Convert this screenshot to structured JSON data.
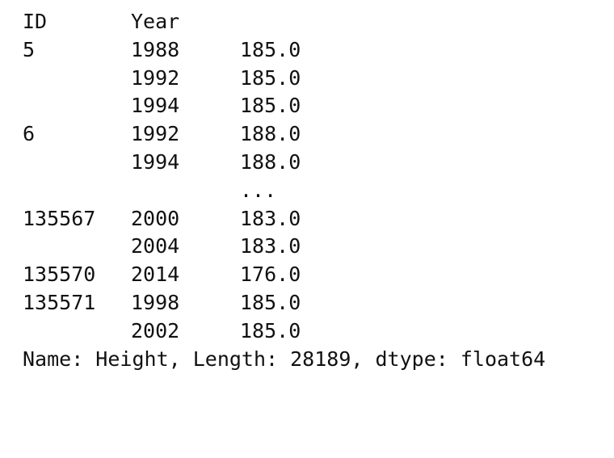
{
  "header": {
    "id": "ID",
    "year": "Year"
  },
  "rows": [
    {
      "id": "5",
      "year": "1988",
      "value": "185.0"
    },
    {
      "id": "",
      "year": "1992",
      "value": "185.0"
    },
    {
      "id": "",
      "year": "1994",
      "value": "185.0"
    },
    {
      "id": "6",
      "year": "1992",
      "value": "188.0"
    },
    {
      "id": "",
      "year": "1994",
      "value": "188.0"
    },
    {
      "id": "",
      "year": "",
      "value": "..."
    },
    {
      "id": "135567",
      "year": "2000",
      "value": "183.0"
    },
    {
      "id": "",
      "year": "2004",
      "value": "183.0"
    },
    {
      "id": "135570",
      "year": "2014",
      "value": "176.0"
    },
    {
      "id": "135571",
      "year": "1998",
      "value": "185.0"
    },
    {
      "id": "",
      "year": "2002",
      "value": "185.0"
    }
  ],
  "footer": "Name: Height, Length: 28189, dtype: float64"
}
